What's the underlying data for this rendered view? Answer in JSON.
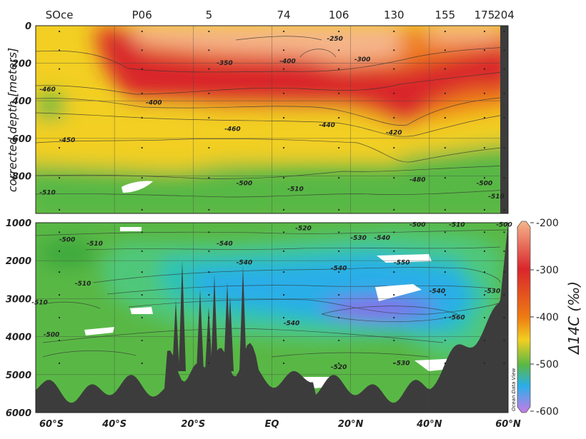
{
  "chart_data": {
    "type": "heatmap",
    "ylabel": "corrected depth [meters]",
    "colorbar_label": "Δ14C (‰)",
    "colorbar_ticks": [
      "-200",
      "-300",
      "-400",
      "-500",
      "-600"
    ],
    "colorbar_range": [
      -600,
      -200
    ],
    "x_tick_labels": [
      "60°S",
      "40°S",
      "20°S",
      "EQ",
      "20°N",
      "40°N",
      "60°N"
    ],
    "x_range_lat": [
      -60,
      60
    ],
    "station_labels": [
      {
        "label": "SOce",
        "lat": -54
      },
      {
        "label": "P06",
        "lat": -33
      },
      {
        "label": "5",
        "lat": -16
      },
      {
        "label": "74",
        "lat": 3
      },
      {
        "label": "106",
        "lat": 17
      },
      {
        "label": "130",
        "lat": 31
      },
      {
        "label": "155",
        "lat": 44
      },
      {
        "label": "175",
        "lat": 54
      },
      {
        "label": "204",
        "lat": 59
      }
    ],
    "upper_panel": {
      "depth_range": [
        0,
        1000
      ],
      "y_tick_labels": [
        "0",
        "200",
        "400",
        "600",
        "800"
      ]
    },
    "lower_panel": {
      "depth_range": [
        1000,
        6000
      ],
      "y_tick_labels": [
        "1000",
        "2000",
        "3000",
        "4000",
        "5000",
        "6000"
      ]
    },
    "contour_labels": [
      {
        "text": "-250",
        "lat": 16,
        "depth": 80
      },
      {
        "text": "-300",
        "lat": 23,
        "depth": 190
      },
      {
        "text": "-350",
        "lat": -12,
        "depth": 210
      },
      {
        "text": "-400",
        "lat": 4,
        "depth": 200
      },
      {
        "text": "-400",
        "lat": -30,
        "depth": 420
      },
      {
        "text": "-460",
        "lat": -57,
        "depth": 350
      },
      {
        "text": "-460",
        "lat": -10,
        "depth": 560
      },
      {
        "text": "-440",
        "lat": 14,
        "depth": 540
      },
      {
        "text": "-420",
        "lat": 31,
        "depth": 580
      },
      {
        "text": "-450",
        "lat": -52,
        "depth": 620
      },
      {
        "text": "-500",
        "lat": -7,
        "depth": 850
      },
      {
        "text": "-510",
        "lat": -57,
        "depth": 900
      },
      {
        "text": "-510",
        "lat": 6,
        "depth": 880
      },
      {
        "text": "-480",
        "lat": 37,
        "depth": 830
      },
      {
        "text": "-500",
        "lat": 54,
        "depth": 850
      },
      {
        "text": "-510",
        "lat": 57,
        "depth": 920
      },
      {
        "text": "-500",
        "lat": -52,
        "depth": 1500
      },
      {
        "text": "-510",
        "lat": -45,
        "depth": 1600
      },
      {
        "text": "-520",
        "lat": 8,
        "depth": 1200
      },
      {
        "text": "-530",
        "lat": 22,
        "depth": 1450
      },
      {
        "text": "-540",
        "lat": 28,
        "depth": 1450
      },
      {
        "text": "-500",
        "lat": 37,
        "depth": 1100
      },
      {
        "text": "-510",
        "lat": 47,
        "depth": 1100
      },
      {
        "text": "-500",
        "lat": 59,
        "depth": 1100
      },
      {
        "text": "-540",
        "lat": -12,
        "depth": 1600
      },
      {
        "text": "-540",
        "lat": -7,
        "depth": 2100
      },
      {
        "text": "-540",
        "lat": 17,
        "depth": 2250
      },
      {
        "text": "-550",
        "lat": 33,
        "depth": 2100
      },
      {
        "text": "-510",
        "lat": -48,
        "depth": 2650
      },
      {
        "text": "-510",
        "lat": -59,
        "depth": 3150
      },
      {
        "text": "-540",
        "lat": 42,
        "depth": 2850
      },
      {
        "text": "-530",
        "lat": 56,
        "depth": 2850
      },
      {
        "text": "-540",
        "lat": 5,
        "depth": 3700
      },
      {
        "text": "-560",
        "lat": 47,
        "depth": 3550
      },
      {
        "text": "-500",
        "lat": -56,
        "depth": 4000
      },
      {
        "text": "-520",
        "lat": 17,
        "depth": 4850
      },
      {
        "text": "-530",
        "lat": 33,
        "depth": 4750
      }
    ],
    "grid": true,
    "watermark": "Ocean Data View"
  },
  "colors": {
    "c200": "#f5b58b",
    "c300": "#d9262c",
    "c400": "#ee7b12",
    "c450": "#f2cf22",
    "c500": "#59b845",
    "c540": "#2aaee8",
    "c600": "#c77ae6",
    "bathymetry": "#3c3c3c"
  }
}
